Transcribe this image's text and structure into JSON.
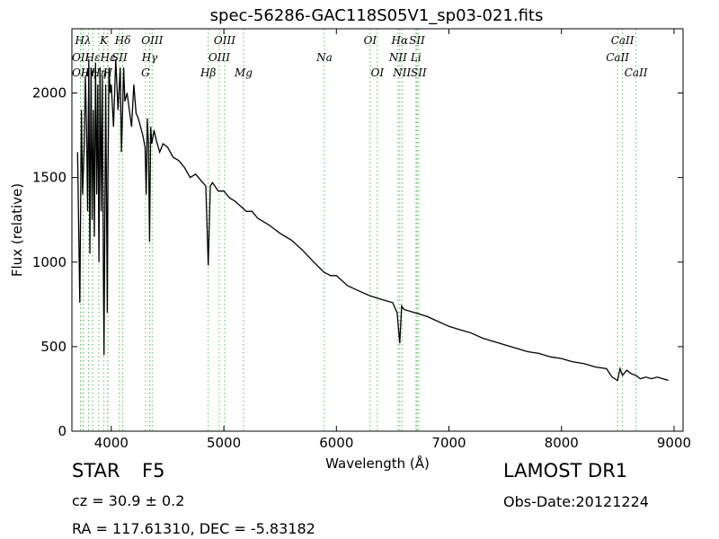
{
  "chart_data": {
    "type": "line",
    "title": "spec-56286-GAC118S05V1_sp03-021.fits",
    "xlabel": "Wavelength (Å)",
    "ylabel": "Flux (relative)",
    "xlim": [
      3650,
      9080
    ],
    "ylim": [
      0,
      2380
    ],
    "xticks": [
      4000,
      5000,
      6000,
      7000,
      8000,
      9000
    ],
    "yticks": [
      0,
      500,
      1000,
      1500,
      2000
    ],
    "series": [
      {
        "color": "#000000",
        "x": [
          3700,
          3720,
          3735,
          3745,
          3760,
          3770,
          3780,
          3790,
          3800,
          3810,
          3820,
          3830,
          3840,
          3850,
          3860,
          3870,
          3880,
          3890,
          3900,
          3910,
          3920,
          3930,
          3935,
          3950,
          3965,
          3970,
          3980,
          3990,
          4000,
          4020,
          4040,
          4060,
          4080,
          4090,
          4100,
          4110,
          4120,
          4140,
          4160,
          4180,
          4200,
          4220,
          4240,
          4260,
          4280,
          4300,
          4310,
          4320,
          4330,
          4340,
          4350,
          4360,
          4380,
          4400,
          4430,
          4460,
          4500,
          4550,
          4600,
          4650,
          4700,
          4750,
          4800,
          4840,
          4861,
          4880,
          4900,
          4950,
          5000,
          5050,
          5100,
          5150,
          5200,
          5250,
          5300,
          5400,
          5500,
          5600,
          5700,
          5800,
          5890,
          5950,
          6000,
          6100,
          6200,
          6300,
          6400,
          6500,
          6540,
          6563,
          6580,
          6600,
          6700,
          6800,
          6900,
          7000,
          7100,
          7200,
          7300,
          7400,
          7500,
          7600,
          7700,
          7800,
          7900,
          8000,
          8100,
          8200,
          8300,
          8400,
          8450,
          8498,
          8520,
          8542,
          8580,
          8620,
          8662,
          8700,
          8750,
          8800,
          8850,
          8900,
          8950
        ],
        "y": [
          1650,
          760,
          1900,
          1400,
          1700,
          2100,
          1800,
          1300,
          2200,
          1050,
          2150,
          1250,
          1900,
          1150,
          2180,
          1400,
          2050,
          1000,
          2150,
          1300,
          2100,
          900,
          450,
          2050,
          700,
          1500,
          2150,
          2000,
          2050,
          1800,
          2200,
          1900,
          2150,
          1650,
          1900,
          2150,
          1950,
          2000,
          1900,
          1800,
          2050,
          1880,
          1850,
          1800,
          1750,
          1680,
          1400,
          1850,
          1700,
          1120,
          1800,
          1700,
          1780,
          1720,
          1650,
          1700,
          1680,
          1620,
          1600,
          1560,
          1500,
          1520,
          1480,
          1450,
          980,
          1450,
          1470,
          1420,
          1420,
          1380,
          1360,
          1330,
          1300,
          1300,
          1260,
          1220,
          1170,
          1130,
          1070,
          1000,
          940,
          920,
          920,
          860,
          830,
          800,
          780,
          760,
          700,
          520,
          740,
          720,
          700,
          680,
          650,
          620,
          600,
          580,
          550,
          530,
          510,
          490,
          470,
          460,
          440,
          430,
          410,
          400,
          380,
          370,
          320,
          300,
          370,
          330,
          360,
          340,
          330,
          310,
          320,
          310,
          320,
          310,
          300
        ]
      }
    ],
    "line_markers": [
      {
        "wl": 3727,
        "label": "OII",
        "row": 1
      },
      {
        "wl": 3727,
        "label": "OII",
        "row": 2
      },
      {
        "wl": 3750,
        "label": "Hλ",
        "row": 0
      },
      {
        "wl": 3798,
        "label": "Hη",
        "row": 2
      },
      {
        "wl": 3835,
        "label": "Hε",
        "row": 1
      },
      {
        "wl": 3889,
        "label": "Hη",
        "row": 2
      },
      {
        "wl": 3934,
        "label": "K",
        "row": 0
      },
      {
        "wl": 3968,
        "label": "H",
        "row": 2
      },
      {
        "wl": 3970,
        "label": "Hε",
        "row": 1
      },
      {
        "wl": 4072,
        "label": "SII",
        "row": 1
      },
      {
        "wl": 4102,
        "label": "Hδ",
        "row": 0
      },
      {
        "wl": 4304,
        "label": "G",
        "row": 2
      },
      {
        "wl": 4341,
        "label": "Hγ",
        "row": 1
      },
      {
        "wl": 4363,
        "label": "OIII",
        "row": 0
      },
      {
        "wl": 4861,
        "label": "Hβ",
        "row": 2
      },
      {
        "wl": 4959,
        "label": "OIII",
        "row": 1
      },
      {
        "wl": 5007,
        "label": "OIII",
        "row": 0
      },
      {
        "wl": 5175,
        "label": "Mg",
        "row": 2
      },
      {
        "wl": 5893,
        "label": "Na",
        "row": 1
      },
      {
        "wl": 6300,
        "label": "OI",
        "row": 0
      },
      {
        "wl": 6364,
        "label": "OI",
        "row": 2
      },
      {
        "wl": 6548,
        "label": "NII",
        "row": 1
      },
      {
        "wl": 6563,
        "label": "Hα",
        "row": 0
      },
      {
        "wl": 6583,
        "label": "NII",
        "row": 2
      },
      {
        "wl": 6707,
        "label": "Li",
        "row": 1
      },
      {
        "wl": 6716,
        "label": "SII",
        "row": 0
      },
      {
        "wl": 6731,
        "label": "SII",
        "row": 2
      },
      {
        "wl": 8498,
        "label": "CaII",
        "row": 1
      },
      {
        "wl": 8542,
        "label": "CaII",
        "row": 0
      },
      {
        "wl": 8662,
        "label": "CaII",
        "row": 2
      }
    ],
    "marker_color": "#5cb85c",
    "grid": false,
    "legend": "none"
  },
  "info": {
    "obj_class": "STAR",
    "obj_subclass": "F5",
    "cz": "cz = 30.9  ± 0.2",
    "radec": "RA = 117.61310, DEC = -5.83182",
    "survey": "LAMOST DR1",
    "obs_date": "Obs-Date:20121224"
  }
}
